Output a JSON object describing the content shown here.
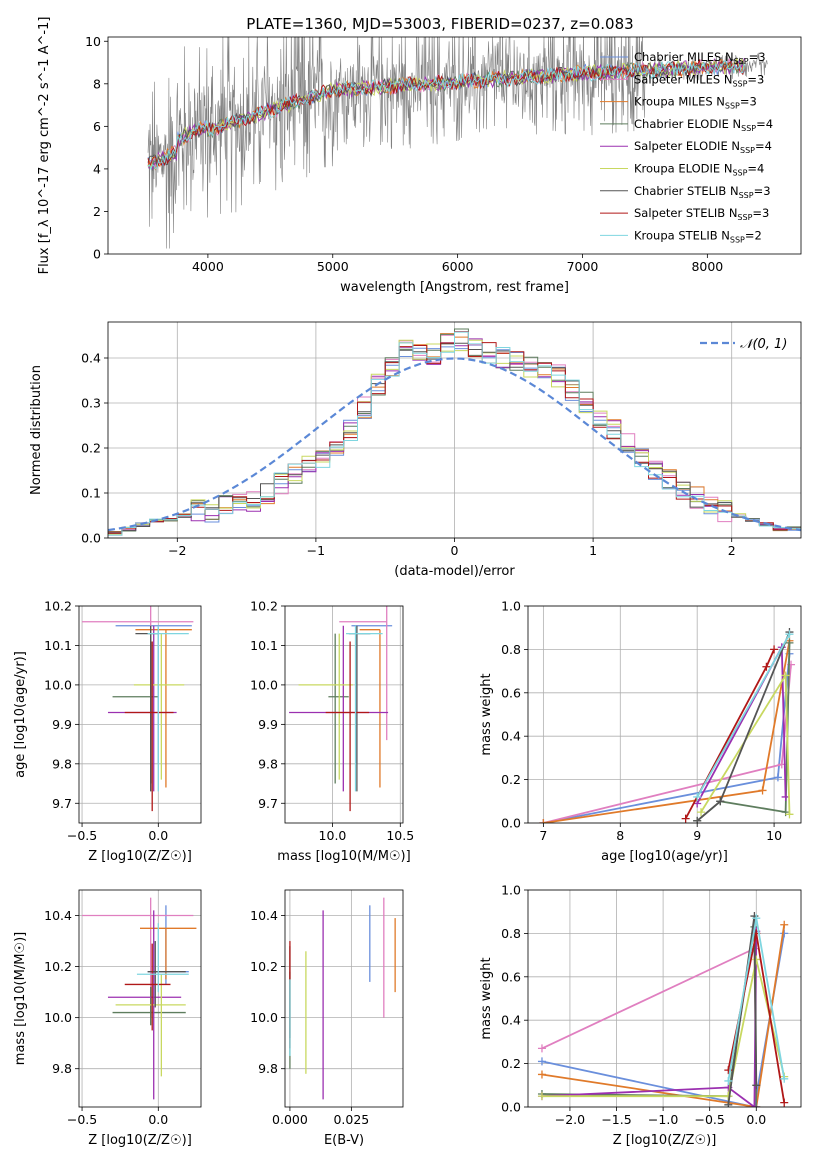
{
  "figure": {
    "title": "PLATE=1360, MJD=53003, FIBERID=0237, z=0.083"
  },
  "series_styles": [
    {
      "name": "Chabrier MILES",
      "nssp": "3",
      "color": "#6a8fdc"
    },
    {
      "name": "Salpeter MILES",
      "nssp": "3",
      "color": "#e07fc0"
    },
    {
      "name": "Kroupa MILES",
      "nssp": "3",
      "color": "#e07a2a"
    },
    {
      "name": "Chabrier ELODIE",
      "nssp": "4",
      "color": "#5e7d5e"
    },
    {
      "name": "Salpeter ELODIE",
      "nssp": "4",
      "color": "#9b30b0"
    },
    {
      "name": "Kroupa ELODIE",
      "nssp": "4",
      "color": "#c8d860"
    },
    {
      "name": "Chabrier STELIB",
      "nssp": "3",
      "color": "#555555"
    },
    {
      "name": "Salpeter STELIB",
      "nssp": "3",
      "color": "#b01818"
    },
    {
      "name": "Kroupa STELIB",
      "nssp": "2",
      "color": "#7fd6e0"
    }
  ],
  "chart_data": [
    {
      "id": "spectrum",
      "type": "line",
      "xlabel": "wavelength [Angstrom, rest frame]",
      "ylabel": "Flux [f_λ 10^-17 erg cm^-2 s^-1 A^-1]",
      "xlim": [
        3200,
        8750
      ],
      "ylim": [
        0,
        10.2
      ],
      "xticks": [
        4000,
        5000,
        6000,
        7000,
        8000
      ],
      "yticks": [
        0,
        2,
        4,
        6,
        8,
        10
      ],
      "legend": "upper right",
      "data_range": [
        3520,
        8480
      ],
      "data_color": "#808080",
      "model_range": [
        3520,
        8300
      ]
    },
    {
      "id": "residuals",
      "type": "histogram",
      "xlabel": "(data-model)/error",
      "ylabel": "Normed distribution",
      "xlim": [
        -2.5,
        2.5
      ],
      "ylim": [
        0,
        0.48
      ],
      "xticks": [
        -2,
        -1,
        0,
        1,
        2
      ],
      "yticks": [
        0.0,
        0.1,
        0.2,
        0.3,
        0.4
      ],
      "reference_label": "𝒩(0, 1)",
      "reference_color": "#5b88d6",
      "legend": "upper right",
      "bin_edges_start": -2.5,
      "bin_width": 0.1,
      "values": [
        0.01,
        0.02,
        0.03,
        0.04,
        0.04,
        0.05,
        0.06,
        0.06,
        0.07,
        0.08,
        0.08,
        0.1,
        0.12,
        0.14,
        0.16,
        0.18,
        0.2,
        0.24,
        0.29,
        0.34,
        0.38,
        0.42,
        0.42,
        0.41,
        0.43,
        0.44,
        0.42,
        0.41,
        0.4,
        0.39,
        0.38,
        0.37,
        0.36,
        0.33,
        0.3,
        0.27,
        0.24,
        0.21,
        0.18,
        0.15,
        0.13,
        0.11,
        0.09,
        0.07,
        0.06,
        0.05,
        0.04,
        0.03,
        0.02,
        0.02
      ]
    },
    {
      "id": "age-vs-Z",
      "type": "errorbar",
      "xlabel": "Z [log10(Z/Z☉)]",
      "ylabel": "age  [log10(age/yr)]",
      "xlim": [
        -0.52,
        0.28
      ],
      "ylim": [
        9.65,
        10.2
      ],
      "xticks": [
        -0.5,
        0.0
      ],
      "yticks": [
        9.7,
        9.8,
        9.9,
        10.0,
        10.1,
        10.2
      ],
      "points": [
        {
          "series": 0,
          "x": 0.0,
          "y": 10.15,
          "xerr": [
            0.28,
            0.22
          ],
          "yerr": [
            0.35,
            0.0
          ]
        },
        {
          "series": 1,
          "x": -0.05,
          "y": 10.16,
          "xerr": [
            0.45,
            0.28
          ],
          "yerr": [
            0.3,
            0.04
          ]
        },
        {
          "series": 2,
          "x": 0.05,
          "y": 10.14,
          "xerr": [
            0.2,
            0.17
          ],
          "yerr": [
            0.4,
            0.0
          ]
        },
        {
          "series": 3,
          "x": -0.05,
          "y": 9.97,
          "xerr": [
            0.25,
            0.05
          ],
          "yerr": [
            0.22,
            0.16
          ]
        },
        {
          "series": 4,
          "x": -0.03,
          "y": 9.93,
          "xerr": [
            0.3,
            0.15
          ],
          "yerr": [
            0.2,
            0.22
          ]
        },
        {
          "series": 5,
          "x": 0.02,
          "y": 10.0,
          "xerr": [
            0.18,
            0.15
          ],
          "yerr": [
            0.24,
            0.13
          ]
        },
        {
          "series": 6,
          "x": -0.05,
          "y": 10.13,
          "xerr": [
            0.1,
            0.05
          ],
          "yerr": [
            0.4,
            0.02
          ]
        },
        {
          "series": 7,
          "x": -0.04,
          "y": 9.93,
          "xerr": [
            0.18,
            0.14
          ],
          "yerr": [
            0.25,
            0.18
          ]
        },
        {
          "series": 8,
          "x": 0.0,
          "y": 10.13,
          "xerr": [
            0.07,
            0.2
          ],
          "yerr": [
            0.4,
            0.02
          ]
        }
      ]
    },
    {
      "id": "age-vs-mass",
      "type": "errorbar",
      "xlabel": "mass [log10(M/M☉)]",
      "ylabel": "",
      "xlim": [
        9.65,
        10.52
      ],
      "ylim": [
        9.65,
        10.2
      ],
      "xticks": [
        10.0,
        10.5
      ],
      "yticks": [
        9.7,
        9.8,
        9.9,
        10.0,
        10.1,
        10.2
      ],
      "points": [
        {
          "series": 0,
          "x": 10.18,
          "y": 10.15,
          "xerr": [
            0.04,
            0.26
          ],
          "yerr": [
            0.35,
            0.0
          ]
        },
        {
          "series": 1,
          "x": 10.4,
          "y": 10.16,
          "xerr": [
            0.35,
            0.0
          ],
          "yerr": [
            0.3,
            0.04
          ]
        },
        {
          "series": 2,
          "x": 10.35,
          "y": 10.14,
          "xerr": [
            0.15,
            0.0
          ],
          "yerr": [
            0.4,
            0.0
          ]
        },
        {
          "series": 3,
          "x": 10.02,
          "y": 9.97,
          "xerr": [
            0.05,
            0.1
          ],
          "yerr": [
            0.22,
            0.16
          ]
        },
        {
          "series": 4,
          "x": 10.08,
          "y": 9.93,
          "xerr": [
            0.4,
            0.33
          ],
          "yerr": [
            0.2,
            0.22
          ]
        },
        {
          "series": 5,
          "x": 10.05,
          "y": 10.0,
          "xerr": [
            0.3,
            0.1
          ],
          "yerr": [
            0.24,
            0.13
          ]
        },
        {
          "series": 6,
          "x": 10.18,
          "y": 10.13,
          "xerr": [
            0.06,
            0.1
          ],
          "yerr": [
            0.4,
            0.02
          ]
        },
        {
          "series": 7,
          "x": 10.13,
          "y": 9.93,
          "xerr": [
            0.18,
            0.14
          ],
          "yerr": [
            0.25,
            0.18
          ]
        },
        {
          "series": 8,
          "x": 10.17,
          "y": 10.13,
          "xerr": [
            0.07,
            0.2
          ],
          "yerr": [
            0.4,
            0.02
          ]
        }
      ]
    },
    {
      "id": "weight-vs-age",
      "type": "line",
      "xlabel": "age  [log10(age/yr)]",
      "ylabel": "mass weight",
      "xlim": [
        6.8,
        10.35
      ],
      "ylim": [
        0,
        1.0
      ],
      "xticks": [
        7,
        8,
        9,
        10
      ],
      "yticks": [
        0.0,
        0.2,
        0.4,
        0.6,
        0.8,
        1.0
      ],
      "series": [
        {
          "series": 0,
          "x": [
            7.0,
            10.05,
            10.2
          ],
          "y": [
            0.0,
            0.21,
            0.78
          ]
        },
        {
          "series": 1,
          "x": [
            7.0,
            10.1,
            10.22
          ],
          "y": [
            0.0,
            0.27,
            0.73
          ]
        },
        {
          "series": 2,
          "x": [
            7.0,
            9.85,
            10.2
          ],
          "y": [
            0.0,
            0.15,
            0.84
          ]
        },
        {
          "series": 3,
          "x": [
            9.0,
            9.3,
            10.15,
            10.2
          ],
          "y": [
            0.01,
            0.1,
            0.05,
            0.83
          ]
        },
        {
          "series": 4,
          "x": [
            9.0,
            10.1,
            10.15
          ],
          "y": [
            0.09,
            0.81,
            0.12
          ]
        },
        {
          "series": 5,
          "x": [
            9.05,
            10.15,
            10.2
          ],
          "y": [
            0.05,
            0.68,
            0.04
          ]
        },
        {
          "series": 6,
          "x": [
            9.0,
            9.3,
            10.2
          ],
          "y": [
            0.01,
            0.1,
            0.88
          ]
        },
        {
          "series": 7,
          "x": [
            8.85,
            9.9,
            10.0
          ],
          "y": [
            0.02,
            0.72,
            0.8
          ]
        },
        {
          "series": 8,
          "x": [
            9.0,
            10.2
          ],
          "y": [
            0.12,
            0.87
          ]
        }
      ]
    },
    {
      "id": "mass-vs-Z",
      "type": "errorbar",
      "xlabel": "Z [log10(Z/Z☉)]",
      "ylabel": "mass [log10(M/M☉)]",
      "xlim": [
        -0.52,
        0.28
      ],
      "ylim": [
        9.65,
        10.5
      ],
      "xticks": [
        -0.5,
        0.0
      ],
      "yticks": [
        9.8,
        10.0,
        10.2,
        10.4
      ],
      "points": [
        {
          "series": 0,
          "x": 0.05,
          "y": 10.18,
          "xerr": [
            0.12,
            0.15
          ],
          "yerr": [
            0.05,
            0.26
          ]
        },
        {
          "series": 1,
          "x": -0.05,
          "y": 10.4,
          "xerr": [
            0.45,
            0.28
          ],
          "yerr": [
            0.4,
            0.07
          ]
        },
        {
          "series": 2,
          "x": 0.05,
          "y": 10.35,
          "xerr": [
            0.17,
            0.2
          ],
          "yerr": [
            0.2,
            0.0
          ]
        },
        {
          "series": 3,
          "x": -0.05,
          "y": 10.02,
          "xerr": [
            0.25,
            0.23
          ],
          "yerr": [
            0.05,
            0.1
          ]
        },
        {
          "series": 4,
          "x": -0.03,
          "y": 10.08,
          "xerr": [
            0.3,
            0.18
          ],
          "yerr": [
            0.4,
            0.34
          ]
        },
        {
          "series": 5,
          "x": 0.02,
          "y": 10.05,
          "xerr": [
            0.3,
            0.16
          ],
          "yerr": [
            0.28,
            0.12
          ]
        },
        {
          "series": 6,
          "x": -0.02,
          "y": 10.18,
          "xerr": [
            0.05,
            0.2
          ],
          "yerr": [
            0.14,
            0.12
          ]
        },
        {
          "series": 7,
          "x": -0.04,
          "y": 10.13,
          "xerr": [
            0.18,
            0.12
          ],
          "yerr": [
            0.18,
            0.16
          ]
        },
        {
          "series": 8,
          "x": 0.0,
          "y": 10.17,
          "xerr": [
            0.14,
            0.2
          ],
          "yerr": [
            0.07,
            0.2
          ]
        }
      ]
    },
    {
      "id": "mass-vs-EBV",
      "type": "errorbar",
      "xlabel": "E(B-V)",
      "ylabel": "",
      "xlim": [
        -0.002,
        0.046
      ],
      "ylim": [
        9.65,
        10.5
      ],
      "xticks": [
        0.0,
        0.025
      ],
      "xtick_labels": [
        "0.000",
        "0.025"
      ],
      "yticks": [
        9.8,
        10.0,
        10.2,
        10.4
      ],
      "points": [
        {
          "series": 0,
          "x": 0.0325,
          "y": 10.29,
          "xerr": [
            0,
            0
          ],
          "yerr": [
            0.15,
            0.15
          ]
        },
        {
          "series": 1,
          "x": 0.0382,
          "y": 10.24,
          "xerr": [
            0,
            0
          ],
          "yerr": [
            0.24,
            0.23
          ]
        },
        {
          "series": 2,
          "x": 0.0428,
          "y": 10.25,
          "xerr": [
            0,
            0
          ],
          "yerr": [
            0.15,
            0.14
          ]
        },
        {
          "series": 3,
          "x": 0.0,
          "y": 10.0,
          "xerr": [
            0,
            0
          ],
          "yerr": [
            0.2,
            0.18
          ]
        },
        {
          "series": 4,
          "x": 0.0135,
          "y": 10.05,
          "xerr": [
            0,
            0
          ],
          "yerr": [
            0.37,
            0.37
          ]
        },
        {
          "series": 5,
          "x": 0.0065,
          "y": 10.02,
          "xerr": [
            0,
            0
          ],
          "yerr": [
            0.24,
            0.24
          ]
        },
        {
          "series": 6,
          "x": 0.0,
          "y": 10.1,
          "xerr": [
            0,
            0
          ],
          "yerr": [
            0.18,
            0.18
          ]
        },
        {
          "series": 7,
          "x": 0.0,
          "y": 10.2,
          "xerr": [
            0,
            0
          ],
          "yerr": [
            0.32,
            0.1
          ]
        },
        {
          "series": 8,
          "x": 0.0,
          "y": 10.0,
          "xerr": [
            0,
            0
          ],
          "yerr": [
            0.15,
            0.15
          ]
        }
      ]
    },
    {
      "id": "weight-vs-Z",
      "type": "line",
      "xlabel": "Z [log10(Z/Z☉)]",
      "ylabel": "mass weight",
      "xlim": [
        -2.45,
        0.48
      ],
      "ylim": [
        0,
        1.0
      ],
      "xticks": [
        -2.0,
        -1.5,
        -1.0,
        -0.5,
        0.0
      ],
      "yticks": [
        0.0,
        0.2,
        0.4,
        0.6,
        0.8,
        1.0
      ],
      "series": [
        {
          "series": 0,
          "x": [
            -2.3,
            -0.02,
            0.3
          ],
          "y": [
            0.21,
            0.0,
            0.8
          ]
        },
        {
          "series": 1,
          "x": [
            -2.3,
            -0.02,
            0.0
          ],
          "y": [
            0.27,
            0.73,
            0.0
          ]
        },
        {
          "series": 2,
          "x": [
            -2.3,
            0.0,
            0.3
          ],
          "y": [
            0.15,
            0.0,
            0.84
          ]
        },
        {
          "series": 3,
          "x": [
            -2.3,
            -0.3,
            -0.02,
            0.0
          ],
          "y": [
            0.06,
            0.05,
            0.83,
            0.0
          ]
        },
        {
          "series": 4,
          "x": [
            -2.3,
            -0.3,
            -0.02,
            0.0
          ],
          "y": [
            0.05,
            0.09,
            0.0,
            0.81
          ]
        },
        {
          "series": 5,
          "x": [
            -2.3,
            -0.3,
            0.0,
            0.3
          ],
          "y": [
            0.05,
            0.05,
            0.68,
            0.14
          ]
        },
        {
          "series": 6,
          "x": [
            -0.3,
            -0.02,
            0.0
          ],
          "y": [
            0.01,
            0.88,
            0.1
          ]
        },
        {
          "series": 7,
          "x": [
            -0.3,
            0.0,
            0.3
          ],
          "y": [
            0.17,
            0.8,
            0.02
          ]
        },
        {
          "series": 8,
          "x": [
            -0.3,
            0.0,
            0.3
          ],
          "y": [
            0.12,
            0.87,
            0.13
          ]
        }
      ]
    }
  ]
}
